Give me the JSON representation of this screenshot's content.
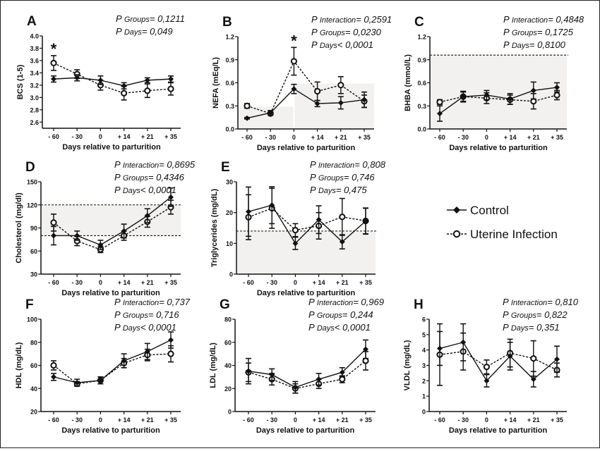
{
  "chart_data": [
    {
      "id": "A",
      "type": "line",
      "letter": "A",
      "ylabel": "BCS (1-5)",
      "xlabel": "Days relative to parturition",
      "categories": [
        "- 60",
        "- 30",
        "0",
        "+ 14",
        "+ 21",
        "+ 35"
      ],
      "ylim": [
        2.5,
        4.0
      ],
      "yticks": [
        "2.6",
        "2.8",
        "3.0",
        "3.2",
        "3.4",
        "3.6",
        "3.8",
        "4.0"
      ],
      "stats": [
        {
          "label": "Groups",
          "value": "= 0,1211"
        },
        {
          "label": "Days",
          "value": "= 0,049"
        }
      ],
      "significance": [
        {
          "category": "- 60",
          "mark": "*"
        }
      ],
      "series": [
        {
          "name": "Control",
          "values": [
            3.3,
            3.32,
            3.28,
            3.19,
            3.28,
            3.3
          ],
          "errors": [
            0.05,
            0.05,
            0.07,
            0.05,
            0.04,
            0.05
          ]
        },
        {
          "name": "Uterine Infection",
          "values": [
            3.56,
            3.38,
            3.2,
            3.07,
            3.11,
            3.14
          ],
          "errors": [
            0.12,
            0.07,
            0.08,
            0.11,
            0.11,
            0.1
          ]
        }
      ]
    },
    {
      "id": "B",
      "type": "line",
      "letter": "B",
      "ylabel": "NEFA (mEq/L)",
      "xlabel": "Days relative to parturition",
      "categories": [
        "- 60",
        "- 30",
        "0",
        "+ 14",
        "+ 21",
        "+ 35"
      ],
      "ylim": [
        0,
        1.2
      ],
      "yticks": [
        "0.0",
        "0.3",
        "0.6",
        "0.9",
        "1.2"
      ],
      "stats": [
        {
          "label": "Interaction",
          "value": "= 0,2591"
        },
        {
          "label": "Groups",
          "value": "= 0,0230"
        },
        {
          "label": "Days",
          "value": "< 0,0001"
        }
      ],
      "significance": [
        {
          "category": "0",
          "mark": "*"
        }
      ],
      "reference_bands": [
        {
          "y": [
            0,
            0.29
          ],
          "from": "- 60",
          "to": "0"
        },
        {
          "y": [
            0,
            0.59
          ],
          "from": "0",
          "to": "+ 35"
        }
      ],
      "series": [
        {
          "name": "Control",
          "values": [
            0.14,
            0.21,
            0.52,
            0.33,
            0.34,
            0.38
          ],
          "errors": [
            0.01,
            0.03,
            0.06,
            0.04,
            0.08,
            0.1
          ]
        },
        {
          "name": "Uterine Infection",
          "values": [
            0.3,
            0.2,
            0.88,
            0.49,
            0.57,
            0.36
          ],
          "errors": [
            0.03,
            0.02,
            0.18,
            0.12,
            0.11,
            0.08
          ]
        }
      ]
    },
    {
      "id": "C",
      "type": "line",
      "letter": "C",
      "ylabel": "BHBA (mmol/L)",
      "xlabel": "Days relative to parturition",
      "categories": [
        "- 60",
        "- 30",
        "0",
        "+ 14",
        "+ 21",
        "+ 35"
      ],
      "ylim": [
        0,
        1.2
      ],
      "yticks": [
        "0.0",
        "0.3",
        "0.6",
        "0.9",
        "1.2"
      ],
      "stats": [
        {
          "label": "Interaction",
          "value": "= 0,4848"
        },
        {
          "label": "Groups",
          "value": "= 0,1725"
        },
        {
          "label": "Days",
          "value": "= 0,8100"
        }
      ],
      "reference_bands": [
        {
          "y": [
            0,
            0.96
          ],
          "from": "- 60",
          "to": "+ 35"
        }
      ],
      "reference_lines": [
        0.96
      ],
      "series": [
        {
          "name": "Control",
          "values": [
            0.2,
            0.42,
            0.44,
            0.39,
            0.5,
            0.54
          ],
          "errors": [
            0.1,
            0.07,
            0.06,
            0.07,
            0.11,
            0.06
          ]
        },
        {
          "name": "Uterine Infection",
          "values": [
            0.35,
            0.42,
            0.4,
            0.38,
            0.36,
            0.44
          ],
          "errors": [
            0.03,
            0.06,
            0.07,
            0.06,
            0.1,
            0.06
          ]
        }
      ]
    },
    {
      "id": "D",
      "type": "line",
      "letter": "D",
      "ylabel": "Cholesterol (mg/dl)",
      "xlabel": "Days relative to parturition",
      "categories": [
        "- 60",
        "- 30",
        "0",
        "+ 14",
        "+ 21",
        "+ 35"
      ],
      "ylim": [
        30,
        150
      ],
      "yticks": [
        "30",
        "60",
        "90",
        "120",
        "150"
      ],
      "stats": [
        {
          "label": "Interaction",
          "value": "= 0,8695"
        },
        {
          "label": "Groups",
          "value": "= 0,4346"
        },
        {
          "label": "Days",
          "value": "< 0,0001"
        }
      ],
      "reference_bands": [
        {
          "y": [
            80,
            120
          ],
          "from": "- 60",
          "to": "+ 35"
        }
      ],
      "reference_lines": [
        80,
        120
      ],
      "series": [
        {
          "name": "Control",
          "values": [
            80,
            80,
            68,
            86,
            106,
            130
          ],
          "errors": [
            12,
            6,
            6,
            9,
            9,
            12
          ]
        },
        {
          "name": "Uterine Infection",
          "values": [
            97,
            73,
            62,
            80,
            98,
            117
          ],
          "errors": [
            11,
            6,
            4,
            6,
            7,
            9
          ]
        }
      ]
    },
    {
      "id": "E",
      "type": "line",
      "letter": "E",
      "ylabel": "Triglycerides (mg/dL)",
      "xlabel": "Days relative to parturition",
      "categories": [
        "- 60",
        "- 30",
        "0",
        "+ 14",
        "+ 21",
        "+ 35"
      ],
      "ylim": [
        0,
        30
      ],
      "yticks": [
        "0",
        "10",
        "20",
        "30"
      ],
      "stats": [
        {
          "label": "Interaction",
          "value": "= 0,808"
        },
        {
          "label": "Groups",
          "value": "= 0,746"
        },
        {
          "label": "Days",
          "value": "= 0,475"
        }
      ],
      "reference_bands": [
        {
          "y": [
            0,
            14
          ],
          "from": "- 60",
          "to": "+ 35"
        }
      ],
      "reference_lines": [
        14
      ],
      "series": [
        {
          "name": "Control",
          "values": [
            20.3,
            22.4,
            10.0,
            17.7,
            10.5,
            17.2
          ],
          "errors": [
            8.0,
            6.0,
            2.0,
            4.5,
            2.3,
            4.2
          ]
        },
        {
          "name": "Uterine Infection",
          "values": [
            18.5,
            21.4,
            14.3,
            15.7,
            18.6,
            17.3
          ],
          "errors": [
            7.3,
            6.5,
            2.1,
            4.3,
            6.0,
            4.2
          ]
        }
      ]
    },
    {
      "id": "F",
      "type": "line",
      "letter": "F",
      "ylabel": "HDL (mg/dL)",
      "xlabel": "Days relative to parturition",
      "categories": [
        "- 60",
        "- 30",
        "0",
        "+ 14",
        "+ 21",
        "+ 35"
      ],
      "ylim": [
        20,
        100
      ],
      "yticks": [
        "20",
        "40",
        "60",
        "80",
        "100"
      ],
      "stats": [
        {
          "label": "Interaction",
          "value": "= 0,737"
        },
        {
          "label": "Groups",
          "value": "= 0,716"
        },
        {
          "label": "Days",
          "value": "< 0,0001"
        }
      ],
      "series": [
        {
          "name": "Control",
          "values": [
            50,
            45,
            47,
            64,
            72,
            82
          ],
          "errors": [
            3,
            3,
            3,
            6,
            7,
            7
          ]
        },
        {
          "name": "Uterine Infection",
          "values": [
            60,
            44,
            47,
            62,
            69,
            70
          ],
          "errors": [
            4,
            2,
            3,
            4,
            5,
            7
          ]
        }
      ]
    },
    {
      "id": "G",
      "type": "line",
      "letter": "G",
      "ylabel": "LDL (mg/dL)",
      "xlabel": "Days relative to parturition",
      "categories": [
        "- 60",
        "- 30",
        "0",
        "+ 14",
        "+ 21",
        "+ 35"
      ],
      "ylim": [
        0,
        80
      ],
      "yticks": [
        "0",
        "20",
        "40",
        "60",
        "80"
      ],
      "stats": [
        {
          "label": "Interaction",
          "value": "= 0,969"
        },
        {
          "label": "Groups",
          "value": "= 0,244"
        },
        {
          "label": "Days",
          "value": "< 0,0001"
        }
      ],
      "series": [
        {
          "name": "Control",
          "values": [
            35,
            32,
            21,
            28,
            34,
            54
          ],
          "errors": [
            11,
            5,
            5,
            5,
            4,
            8
          ]
        },
        {
          "name": "Uterine Infection",
          "values": [
            34,
            28,
            20,
            24,
            28,
            44
          ],
          "errors": [
            8,
            5,
            4,
            4,
            3,
            8
          ]
        }
      ]
    },
    {
      "id": "H",
      "type": "line",
      "letter": "H",
      "ylabel": "VLDL (mg/dL)",
      "xlabel": "Days relative to parturition",
      "categories": [
        "- 60",
        "- 30",
        "0",
        "+ 14",
        "+ 21",
        "+ 35"
      ],
      "ylim": [
        0,
        6
      ],
      "yticks": [
        "0",
        "1",
        "2",
        "3",
        "4",
        "5",
        "6"
      ],
      "stats": [
        {
          "label": "Interaction",
          "value": "= 0,810"
        },
        {
          "label": "Groups",
          "value": "= 0,822"
        },
        {
          "label": "Days",
          "value": "= 0,351"
        }
      ],
      "series": [
        {
          "name": "Control",
          "values": [
            4.1,
            4.5,
            2.0,
            3.6,
            2.1,
            3.4
          ],
          "errors": [
            1.1,
            1.2,
            0.4,
            0.9,
            0.5,
            0.85
          ]
        },
        {
          "name": "Uterine Infection",
          "values": [
            3.7,
            3.9,
            2.9,
            3.8,
            3.45,
            2.7
          ],
          "errors": [
            2.0,
            1.2,
            0.45,
            0.9,
            1.15,
            0.45
          ]
        }
      ]
    }
  ],
  "legend": {
    "placement": "right",
    "items": [
      {
        "label": "Control",
        "marker": "filled-diamond",
        "line": "solid"
      },
      {
        "label": "Uterine Infection",
        "marker": "open-circle",
        "line": "dashed"
      }
    ]
  },
  "colors": {
    "ink": "#111111",
    "band": "#f2f1ef"
  }
}
